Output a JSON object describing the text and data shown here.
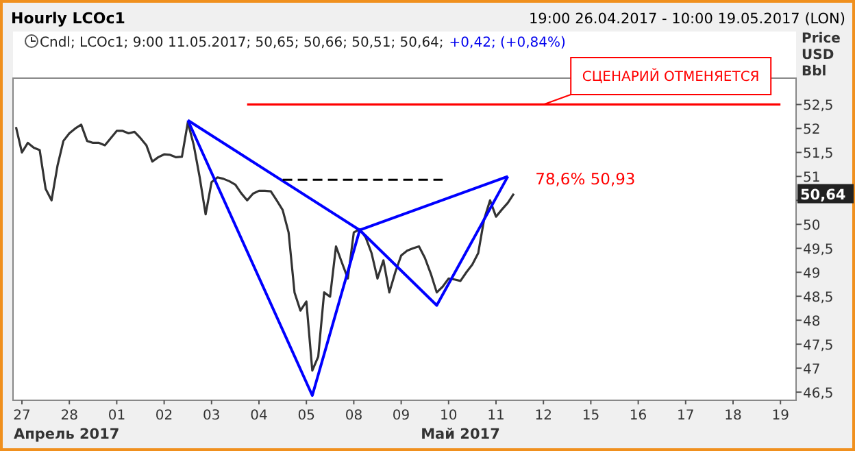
{
  "chart_data": {
    "type": "line",
    "title": "Hourly LCOc1",
    "subtitle": "19:00 26.04.2017 - 10:00 19.05.2017 (LON)",
    "ylabel": "Price USD Bbl",
    "categories": [
      null,
      "27",
      null,
      null,
      null,
      null,
      null,
      null,
      null,
      "28",
      null,
      null,
      null,
      null,
      null,
      null,
      null,
      "01",
      null,
      null,
      null,
      null,
      null,
      null,
      null,
      "02",
      null,
      null,
      null,
      null,
      null,
      null,
      null,
      "03",
      null,
      null,
      null,
      null,
      null,
      null,
      null,
      "04",
      null,
      null,
      null,
      null,
      null,
      null,
      null,
      "05",
      null,
      null,
      null,
      null,
      null,
      null,
      null,
      "08",
      null,
      null,
      null,
      null,
      null,
      null,
      null,
      "09",
      null,
      null,
      null,
      null,
      null,
      null,
      null,
      "10",
      null,
      null,
      null,
      null,
      null,
      null,
      null,
      "11",
      null,
      null,
      null,
      null,
      null,
      null,
      null,
      "12",
      null,
      null,
      null,
      null,
      null,
      null,
      null,
      "15",
      null,
      null,
      null,
      null,
      null,
      null,
      null,
      "16",
      null,
      null,
      null,
      null,
      null,
      null,
      null,
      "17",
      null,
      null,
      null,
      null,
      null,
      null,
      null,
      "18",
      null,
      null,
      null,
      null,
      null,
      null,
      null,
      "19"
    ],
    "ylim": [
      46.33,
      53.05
    ],
    "yticks": [
      {
        "value": 46.5,
        "label": "46,5"
      },
      {
        "value": 47,
        "label": "47"
      },
      {
        "value": 47.5,
        "label": "47,5"
      },
      {
        "value": 48,
        "label": "48"
      },
      {
        "value": 48.5,
        "label": "48,5"
      },
      {
        "value": 49,
        "label": "49"
      },
      {
        "value": 49.5,
        "label": "49,5"
      },
      {
        "value": 50,
        "label": "50"
      },
      {
        "value": 50.5,
        "label": null
      },
      {
        "value": 51,
        "label": "51"
      },
      {
        "value": 51.5,
        "label": "51,5"
      },
      {
        "value": 52,
        "label": "52"
      },
      {
        "value": 52.5,
        "label": "52,5"
      }
    ],
    "series": [
      {
        "color": "#333333",
        "values": [
          52.03,
          51.5,
          51.7,
          51.6,
          51.55,
          50.74,
          50.5,
          51.22,
          51.74,
          51.9,
          52.0,
          52.08,
          51.74,
          51.7,
          51.7,
          51.65,
          51.8,
          51.95,
          51.95,
          51.9,
          51.93,
          51.8,
          51.65,
          51.31,
          51.4,
          51.46,
          51.45,
          51.4,
          51.41,
          52.13,
          51.65,
          50.98,
          50.21,
          50.88,
          50.98,
          50.95,
          50.9,
          50.83,
          50.65,
          50.5,
          50.64,
          50.7,
          50.7,
          50.69,
          50.5,
          50.3,
          49.83,
          48.58,
          48.2,
          48.39,
          46.95,
          47.24,
          48.58,
          48.49,
          49.54,
          49.2,
          48.87,
          49.83,
          49.9,
          49.73,
          49.4,
          48.87,
          49.25,
          48.58,
          49.0,
          49.35,
          49.45,
          49.5,
          49.54,
          49.3,
          48.97,
          48.58,
          48.7,
          48.87,
          48.85,
          48.82,
          49.0,
          49.16,
          49.4,
          50.11,
          50.5,
          50.16,
          50.31,
          50.45,
          50.64,
          null,
          null,
          null,
          null,
          null,
          null,
          null,
          null,
          null,
          null,
          null,
          null,
          null,
          null,
          null,
          null,
          null,
          null,
          null,
          null,
          null,
          null,
          null,
          null,
          null,
          null,
          null,
          null,
          null,
          null,
          null,
          null,
          null,
          null,
          null,
          null,
          null,
          null,
          null,
          null,
          null,
          null,
          null,
          null,
          null
        ]
      },
      {
        "color": "#0000ff",
        "values": [
          null,
          null,
          null,
          null,
          null,
          null,
          null,
          null,
          null,
          null,
          null,
          null,
          null,
          null,
          null,
          null,
          null,
          null,
          null,
          null,
          null,
          null,
          null,
          null,
          null,
          null,
          null,
          null,
          null,
          52.17,
          null,
          null,
          null,
          null,
          null,
          null,
          null,
          null,
          null,
          null,
          null,
          null,
          null,
          null,
          null,
          null,
          null,
          null,
          null,
          null,
          46.43,
          null,
          null,
          null,
          null,
          null,
          null,
          null,
          49.88,
          null,
          null,
          null,
          null,
          null,
          null,
          null,
          null,
          null,
          null,
          null,
          null,
          48.31,
          null,
          null,
          null,
          null,
          null,
          null,
          null,
          null,
          null,
          null,
          null,
          51.0,
          null,
          null,
          null,
          null,
          null,
          null,
          null,
          null,
          null,
          null,
          null,
          null,
          null,
          null,
          null,
          null,
          null,
          null,
          null,
          null,
          null,
          null,
          null,
          null,
          null,
          null,
          null,
          null,
          null,
          null,
          null,
          null,
          null,
          null,
          null,
          null,
          null,
          null,
          null,
          null,
          null,
          null,
          null,
          null,
          null,
          null
        ]
      },
      {
        "color": "#0000ff",
        "values": [
          null,
          null,
          null,
          null,
          null,
          null,
          null,
          null,
          null,
          null,
          null,
          null,
          null,
          null,
          null,
          null,
          null,
          null,
          null,
          null,
          null,
          null,
          null,
          null,
          null,
          null,
          null,
          null,
          null,
          52.17,
          null,
          null,
          null,
          null,
          null,
          null,
          null,
          null,
          null,
          null,
          null,
          null,
          null,
          null,
          null,
          null,
          null,
          null,
          null,
          null,
          null,
          null,
          null,
          null,
          null,
          null,
          null,
          null,
          49.88,
          null,
          null,
          null,
          null,
          null,
          null,
          null,
          null,
          null,
          null,
          null,
          null,
          null,
          null,
          null,
          null,
          null,
          null,
          null,
          null,
          null,
          null,
          null,
          null,
          null,
          null,
          null,
          null,
          null,
          null,
          null,
          null,
          null,
          null,
          null,
          null,
          null,
          null,
          null,
          null,
          null,
          null,
          null,
          null,
          null,
          null,
          null,
          null,
          null,
          null,
          null,
          null,
          null,
          null,
          null,
          null,
          null,
          null,
          null,
          null,
          null,
          null,
          null,
          null,
          null,
          null,
          null,
          null,
          null,
          null,
          null
        ]
      },
      {
        "color": "#0000ff",
        "values": [
          null,
          null,
          null,
          null,
          null,
          null,
          null,
          null,
          null,
          null,
          null,
          null,
          null,
          null,
          null,
          null,
          null,
          null,
          null,
          null,
          null,
          null,
          null,
          null,
          null,
          null,
          null,
          null,
          null,
          null,
          null,
          null,
          null,
          null,
          null,
          null,
          null,
          null,
          null,
          null,
          null,
          null,
          null,
          null,
          null,
          null,
          null,
          null,
          null,
          null,
          null,
          null,
          null,
          null,
          null,
          null,
          null,
          null,
          49.88,
          null,
          null,
          null,
          null,
          null,
          null,
          null,
          null,
          null,
          null,
          null,
          null,
          null,
          null,
          null,
          null,
          null,
          null,
          null,
          null,
          null,
          null,
          null,
          null,
          51.0,
          null,
          null,
          null,
          null,
          null,
          null,
          null,
          null,
          null,
          null,
          null,
          null,
          null,
          null,
          null,
          null,
          null,
          null,
          null,
          null,
          null,
          null,
          null,
          null,
          null,
          null,
          null,
          null,
          null,
          null,
          null,
          null,
          null,
          null,
          null,
          null,
          null,
          null,
          null,
          null,
          null,
          null,
          null,
          null,
          null,
          null
        ]
      },
      {
        "color": "#000000",
        "line_style": "dashed",
        "values": [
          null,
          null,
          null,
          null,
          null,
          null,
          null,
          null,
          null,
          null,
          null,
          null,
          null,
          null,
          null,
          null,
          null,
          null,
          null,
          null,
          null,
          null,
          null,
          null,
          null,
          null,
          null,
          null,
          null,
          null,
          null,
          null,
          null,
          null,
          null,
          null,
          null,
          null,
          null,
          null,
          null,
          null,
          null,
          null,
          null,
          50.93,
          50.93,
          50.93,
          50.93,
          50.93,
          50.93,
          50.93,
          50.93,
          50.93,
          50.93,
          50.93,
          50.93,
          50.93,
          50.93,
          50.93,
          50.93,
          50.93,
          50.93,
          50.93,
          50.93,
          50.93,
          50.93,
          50.93,
          50.93,
          50.93,
          50.93,
          50.93,
          50.93,
          null,
          null,
          null,
          null,
          null,
          null,
          null,
          null,
          null,
          null,
          null,
          null,
          null,
          null,
          null,
          null,
          null,
          null,
          null,
          null,
          null,
          null,
          null,
          null,
          null,
          null,
          null,
          null,
          null,
          null,
          null,
          null,
          null,
          null,
          null,
          null,
          null,
          null,
          null,
          null,
          null,
          null,
          null,
          null,
          null,
          null,
          null,
          null,
          null,
          null,
          null,
          null,
          null,
          null,
          null,
          null,
          null
        ]
      },
      {
        "color": "#ff0000",
        "values": [
          null,
          null,
          null,
          null,
          null,
          null,
          null,
          null,
          null,
          null,
          null,
          null,
          null,
          null,
          null,
          null,
          null,
          null,
          null,
          null,
          null,
          null,
          null,
          null,
          null,
          null,
          null,
          null,
          null,
          null,
          null,
          null,
          null,
          null,
          null,
          null,
          null,
          null,
          null,
          52.5,
          52.5,
          52.5,
          52.5,
          52.5,
          52.5,
          52.5,
          52.5,
          52.5,
          52.5,
          52.5,
          52.5,
          52.5,
          52.5,
          52.5,
          52.5,
          52.5,
          52.5,
          52.5,
          52.5,
          52.5,
          52.5,
          52.5,
          52.5,
          52.5,
          52.5,
          52.5,
          52.5,
          52.5,
          52.5,
          52.5,
          52.5,
          52.5,
          52.5,
          52.5,
          52.5,
          52.5,
          52.5,
          52.5,
          52.5,
          52.5,
          52.5,
          52.5,
          52.5,
          52.5,
          52.5,
          52.5,
          52.5,
          52.5,
          52.5,
          52.5,
          52.5,
          52.5,
          52.5,
          52.5,
          52.5,
          52.5,
          52.5,
          52.5,
          52.5,
          52.5,
          52.5,
          52.5,
          52.5,
          52.5,
          52.5,
          52.5,
          52.5,
          52.5,
          52.5,
          52.5,
          52.5,
          52.5,
          52.5,
          52.5,
          52.5,
          52.5,
          52.5,
          52.5,
          52.5,
          52.5,
          52.5,
          52.5,
          52.5,
          52.5,
          52.5,
          52.5,
          52.5,
          52.5,
          52.5,
          52.5
        ]
      }
    ],
    "annotations": [
      "Cndl; LCOc1; 9:00 11.05.2017; 50,65; 50,66; 50,51; 50,64;",
      "+0,42; (+0,84%)",
      {
        "text": "СЦЕНАРИЙ ОТМЕНЯЕТСЯ",
        "x": "12",
        "y": 52.5
      },
      "78,6% 50,93",
      {
        "text": "50,64",
        "y": 50.64
      },
      "Апрель 2017",
      "Май 2017"
    ]
  }
}
